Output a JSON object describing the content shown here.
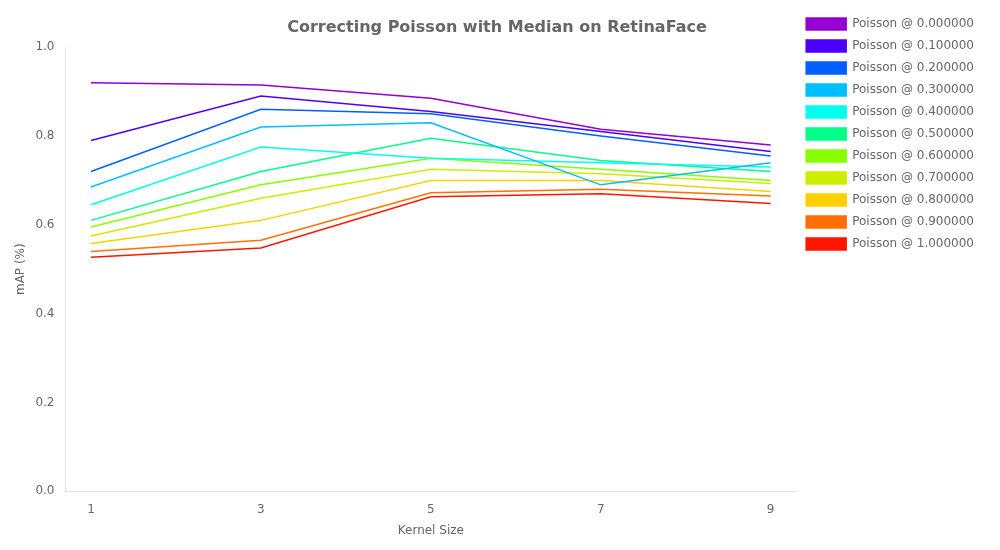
{
  "chart_data": {
    "type": "line",
    "title": "Correcting Poisson with Median on RetinaFace",
    "x_label": "Kernel Size",
    "y_label": "mAP (%)",
    "x": [
      1,
      3,
      5,
      7,
      9
    ],
    "xlim": [
      0.7,
      9.3
    ],
    "xticks": [
      1,
      3,
      5,
      7,
      9
    ],
    "ylim": [
      0.0,
      1.0
    ],
    "yticks": [
      {
        "value": 0,
        "label": "0.0"
      },
      0.2,
      0.4,
      0.6,
      0.8,
      {
        "value": 1,
        "label": "1.0"
      }
    ],
    "grid": false,
    "legend": "right",
    "series": [
      {
        "name": "Poisson @ 0.000000",
        "color": "#9400D3",
        "values": [
          0.92,
          0.915,
          0.885,
          0.815,
          0.78
        ]
      },
      {
        "name": "Poisson @ 0.100000",
        "color": "#4B00FF",
        "values": [
          0.79,
          0.89,
          0.855,
          0.81,
          0.765
        ]
      },
      {
        "name": "Poisson @ 0.200000",
        "color": "#0060FF",
        "values": [
          0.72,
          0.86,
          0.85,
          0.8,
          0.755
        ]
      },
      {
        "name": "Poisson @ 0.300000",
        "color": "#00BFFF",
        "values": [
          0.685,
          0.82,
          0.83,
          0.69,
          0.74
        ]
      },
      {
        "name": "Poisson @ 0.400000",
        "color": "#00FFEE",
        "values": [
          0.645,
          0.775,
          0.75,
          0.74,
          0.73
        ]
      },
      {
        "name": "Poisson @ 0.500000",
        "color": "#00FF88",
        "values": [
          0.61,
          0.72,
          0.795,
          0.745,
          0.72
        ]
      },
      {
        "name": "Poisson @ 0.600000",
        "color": "#88FF00",
        "values": [
          0.595,
          0.69,
          0.75,
          0.725,
          0.7
        ]
      },
      {
        "name": "Poisson @ 0.700000",
        "color": "#CCEE00",
        "values": [
          0.575,
          0.66,
          0.725,
          0.715,
          0.693
        ]
      },
      {
        "name": "Poisson @ 0.800000",
        "color": "#FFD000",
        "values": [
          0.558,
          0.61,
          0.7,
          0.7,
          0.675
        ]
      },
      {
        "name": "Poisson @ 0.900000",
        "color": "#FF7000",
        "values": [
          0.54,
          0.565,
          0.672,
          0.68,
          0.665
        ]
      },
      {
        "name": "Poisson @ 1.000000",
        "color": "#FF1500",
        "values": [
          0.527,
          0.548,
          0.663,
          0.67,
          0.648
        ]
      }
    ]
  }
}
